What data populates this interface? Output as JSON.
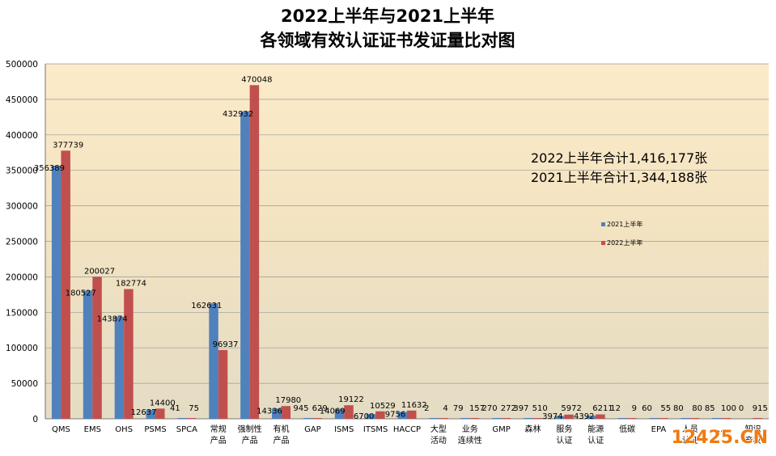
{
  "watermark": "12425.CN",
  "chart_data": {
    "type": "bar",
    "title": [
      "2022上半年与2021上半年",
      "各领域有效认证证书发证量比对图"
    ],
    "xlabel": "",
    "ylabel": "",
    "ylim": [
      0,
      500000
    ],
    "yticks": [
      0,
      50000,
      100000,
      150000,
      200000,
      250000,
      300000,
      350000,
      400000,
      450000,
      500000
    ],
    "grid": true,
    "legend_position": "right",
    "categories": [
      [
        "QMS"
      ],
      [
        "EMS"
      ],
      [
        "OHS"
      ],
      [
        "PSMS"
      ],
      [
        "SPCA"
      ],
      [
        "常规",
        "产品"
      ],
      [
        "强制性",
        "产品"
      ],
      [
        "有机",
        "产品"
      ],
      [
        "GAP"
      ],
      [
        "ISMS"
      ],
      [
        "ITSMS"
      ],
      [
        "HACCP"
      ],
      [
        "大型",
        "活动"
      ],
      [
        "业务",
        "连续性"
      ],
      [
        "GMP"
      ],
      [
        "森林"
      ],
      [
        "服务",
        "认证"
      ],
      [
        "能源",
        "认证"
      ],
      [
        "低碳"
      ],
      [
        "EPA"
      ],
      [
        "人员",
        "认证"
      ],
      [
        "..."
      ],
      [
        "知识",
        "产权"
      ]
    ],
    "series": [
      {
        "name": "2021上半年",
        "color": "#4f81bd",
        "values": [
          356389,
          180527,
          143874,
          12637,
          41,
          162631,
          432932,
          14336,
          945,
          14069,
          6700,
          9756,
          2,
          79,
          270,
          397,
          3974,
          4392,
          12,
          60,
          80,
          85,
          0
        ]
      },
      {
        "name": "2022上半年",
        "color": "#c0504d",
        "values": [
          377739,
          200027,
          182774,
          14400,
          75,
          96937,
          470048,
          17980,
          629,
          19122,
          10529,
          11632,
          4,
          157,
          272,
          510,
          5972,
          6211,
          9,
          55,
          80,
          100,
          915
        ]
      }
    ],
    "annotations": [
      "2022上半年合计1,416,177张",
      "2021上半年合计1,344,188张"
    ]
  }
}
